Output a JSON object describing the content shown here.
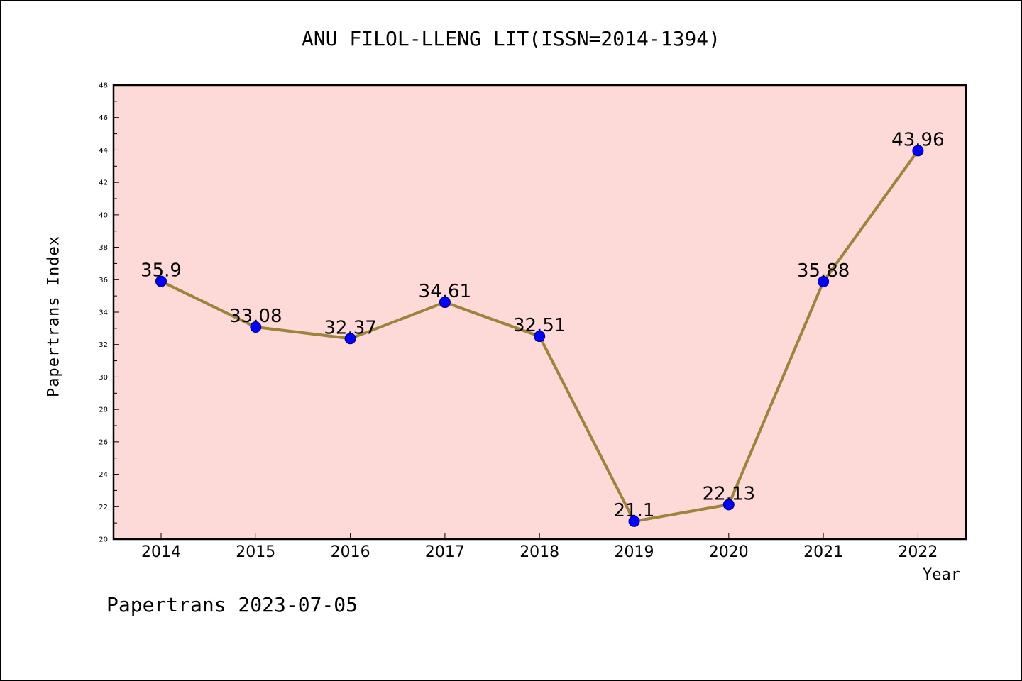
{
  "chart_data": {
    "type": "line",
    "title": "ANU FILOL-LLENG LIT(ISSN=2014-1394)",
    "xlabel": "Year",
    "ylabel": "Papertrans Index",
    "x": [
      "2014",
      "2015",
      "2016",
      "2017",
      "2018",
      "2019",
      "2020",
      "2021",
      "2022"
    ],
    "series": [
      {
        "values": [
          35.9,
          33.08,
          32.37,
          34.61,
          32.51,
          21.1,
          22.13,
          35.88,
          43.96
        ],
        "labels": [
          "35.9",
          "33.08",
          "32.37",
          "34.61",
          "32.51",
          "21.1",
          "22.13",
          "35.88",
          "43.96"
        ]
      }
    ],
    "ylim": [
      20,
      48
    ],
    "yticks": [
      "20",
      "22",
      "24",
      "26",
      "28",
      "30",
      "32",
      "34",
      "36",
      "38",
      "40",
      "42",
      "44",
      "46",
      "48"
    ],
    "grid": false,
    "colors": {
      "plot_background": "#fddad8",
      "line": "#9c843c",
      "marker": "#0000ff"
    }
  },
  "footer": "Papertrans 2023-07-05"
}
